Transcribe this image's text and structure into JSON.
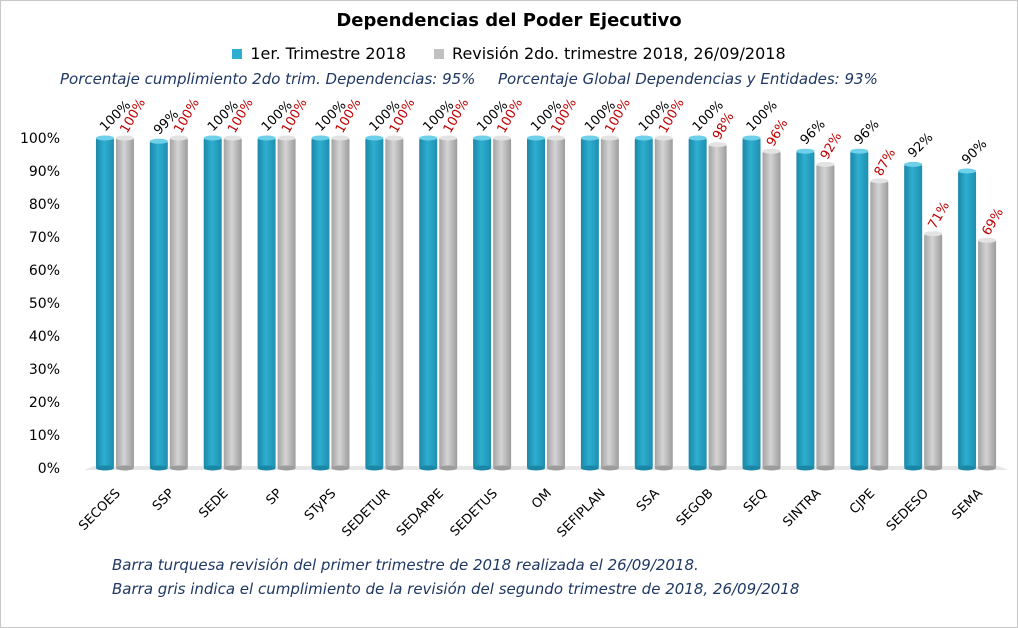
{
  "title": "Dependencias del Poder Ejecutivo",
  "subtitle_line1": "Porcentaje cumplimiento 2do trim. Dependencias: 95%",
  "subtitle_line2": "Porcentaje Global  Dependencias y Entidades: 93%",
  "footnote_1": "Barra turquesa revisión  del primer trimestre  de 2018 realizada el 26/09/2018.",
  "footnote_2": "Barra gris indica el cumplimiento de la revisión  del segundo trimestre  de 2018,  26/09/2018",
  "colors": {
    "series1": "#2eaed0",
    "series2": "#c0c0c0",
    "label2": "#c00000"
  },
  "chart_data": {
    "type": "bar",
    "categories": [
      "SECOES",
      "SSP",
      "SEDE",
      "SP",
      "STyPS",
      "SEDETUR",
      "SEDARPE",
      "SEDETUS",
      "OM",
      "SEFIPLAN",
      "SSA",
      "SEGOB",
      "SEQ",
      "SINTRA",
      "CJPE",
      "SEDESO",
      "SEMA"
    ],
    "series": [
      {
        "name": "1er. Trimestre 2018",
        "values": [
          100,
          99,
          100,
          100,
          100,
          100,
          100,
          100,
          100,
          100,
          100,
          100,
          100,
          96,
          96,
          92,
          90
        ]
      },
      {
        "name": "Revisión 2do. trimestre 2018, 26/09/2018",
        "values": [
          100,
          100,
          100,
          100,
          100,
          100,
          100,
          100,
          100,
          100,
          100,
          98,
          96,
          92,
          87,
          71,
          69
        ]
      }
    ],
    "ylim": [
      0,
      100
    ],
    "yticks": [
      "0%",
      "10%",
      "20%",
      "30%",
      "40%",
      "50%",
      "60%",
      "70%",
      "80%",
      "90%",
      "100%"
    ],
    "grid": false,
    "legend": "top-center"
  }
}
